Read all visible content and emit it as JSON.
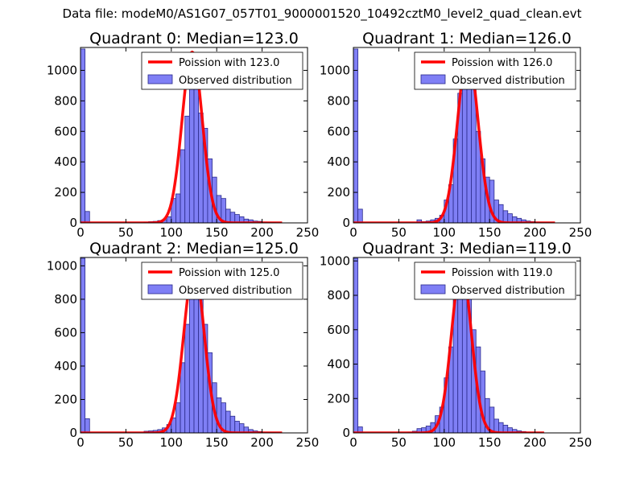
{
  "figure": {
    "suptitle": "Data file: modeM0/AS1G07_057T01_9000001520_10492cztM0_level2_quad_clean.evt"
  },
  "colors": {
    "bar_fill": "#7f7ff5",
    "bar_edge": "#2a2a8a",
    "curve": "#ff0000",
    "axis": "#000000"
  },
  "chart_data": [
    {
      "type": "bar",
      "title": "Quadrant 0: Median=123.0",
      "xlim": [
        0,
        250
      ],
      "ylim": [
        0,
        1150
      ],
      "xticks": [
        0,
        50,
        100,
        150,
        200,
        250
      ],
      "yticks": [
        0,
        200,
        400,
        600,
        800,
        1000
      ],
      "legend": {
        "position": "top-right",
        "entries": [
          "Poission with 123.0",
          "Observed distribution"
        ]
      },
      "median": 123.0,
      "poisson_peak": 1120,
      "curve_range": [
        0,
        222
      ],
      "bin_width": 5,
      "bins": [
        0,
        5,
        70,
        75,
        80,
        85,
        90,
        95,
        100,
        105,
        110,
        115,
        120,
        125,
        130,
        135,
        140,
        145,
        150,
        155,
        160,
        165,
        170,
        175,
        180,
        185,
        190,
        195,
        200,
        205,
        210,
        215
      ],
      "counts": [
        1140,
        75,
        5,
        8,
        10,
        15,
        20,
        40,
        160,
        190,
        480,
        700,
        900,
        880,
        720,
        620,
        420,
        300,
        180,
        160,
        90,
        70,
        55,
        40,
        25,
        20,
        12,
        10,
        6,
        4,
        3,
        2
      ]
    },
    {
      "type": "bar",
      "title": "Quadrant 1: Median=126.0",
      "xlim": [
        0,
        250
      ],
      "ylim": [
        0,
        1150
      ],
      "xticks": [
        0,
        50,
        100,
        150,
        200,
        250
      ],
      "yticks": [
        0,
        200,
        400,
        600,
        800,
        1000
      ],
      "legend": {
        "position": "top-right",
        "entries": [
          "Poission with 126.0",
          "Observed distribution"
        ]
      },
      "median": 126.0,
      "poisson_peak": 1110,
      "curve_range": [
        0,
        222
      ],
      "bin_width": 5,
      "bins": [
        0,
        5,
        70,
        75,
        80,
        85,
        90,
        95,
        100,
        105,
        110,
        115,
        120,
        125,
        130,
        135,
        140,
        145,
        150,
        155,
        160,
        165,
        170,
        175,
        180,
        185,
        190,
        195,
        200,
        205,
        210,
        215
      ],
      "counts": [
        1140,
        90,
        20,
        8,
        12,
        20,
        30,
        50,
        150,
        250,
        550,
        850,
        1000,
        980,
        900,
        600,
        420,
        300,
        280,
        150,
        120,
        80,
        60,
        40,
        30,
        20,
        12,
        8,
        6,
        4,
        3,
        2
      ]
    },
    {
      "type": "bar",
      "title": "Quadrant 2: Median=125.0",
      "xlim": [
        0,
        250
      ],
      "ylim": [
        0,
        1050
      ],
      "xticks": [
        0,
        50,
        100,
        150,
        200,
        250
      ],
      "yticks": [
        0,
        200,
        400,
        600,
        800,
        1000
      ],
      "legend": {
        "position": "top-right",
        "entries": [
          "Poission with 125.0",
          "Observed distribution"
        ]
      },
      "median": 125.0,
      "poisson_peak": 990,
      "curve_range": [
        0,
        222
      ],
      "bin_width": 5,
      "bins": [
        0,
        5,
        70,
        75,
        80,
        85,
        90,
        95,
        100,
        105,
        110,
        115,
        120,
        125,
        130,
        135,
        140,
        145,
        150,
        155,
        160,
        165,
        170,
        175,
        180,
        185,
        190,
        195,
        200,
        205,
        210,
        215
      ],
      "counts": [
        1045,
        85,
        10,
        12,
        15,
        20,
        30,
        50,
        90,
        180,
        420,
        650,
        850,
        980,
        900,
        650,
        480,
        300,
        210,
        180,
        130,
        100,
        70,
        55,
        35,
        20,
        12,
        8,
        5,
        4,
        3,
        2
      ]
    },
    {
      "type": "bar",
      "title": "Quadrant 3: Median=119.0",
      "xlim": [
        0,
        250
      ],
      "ylim": [
        0,
        1020
      ],
      "xticks": [
        0,
        50,
        100,
        150,
        200,
        250
      ],
      "yticks": [
        0,
        200,
        400,
        600,
        800,
        1000
      ],
      "legend": {
        "position": "top-right",
        "entries": [
          "Poission with 119.0",
          "Observed distribution"
        ]
      },
      "median": 119.0,
      "poisson_peak": 960,
      "curve_range": [
        0,
        210
      ],
      "bin_width": 5,
      "bins": [
        0,
        5,
        60,
        65,
        70,
        75,
        80,
        85,
        90,
        95,
        100,
        105,
        110,
        115,
        120,
        125,
        130,
        135,
        140,
        145,
        150,
        155,
        160,
        165,
        170,
        175,
        180,
        185,
        190,
        195,
        200,
        205
      ],
      "counts": [
        1015,
        35,
        5,
        10,
        25,
        30,
        40,
        60,
        100,
        150,
        320,
        500,
        850,
        960,
        930,
        860,
        600,
        500,
        360,
        200,
        150,
        80,
        60,
        45,
        30,
        20,
        12,
        8,
        5,
        3,
        2,
        1
      ]
    }
  ]
}
